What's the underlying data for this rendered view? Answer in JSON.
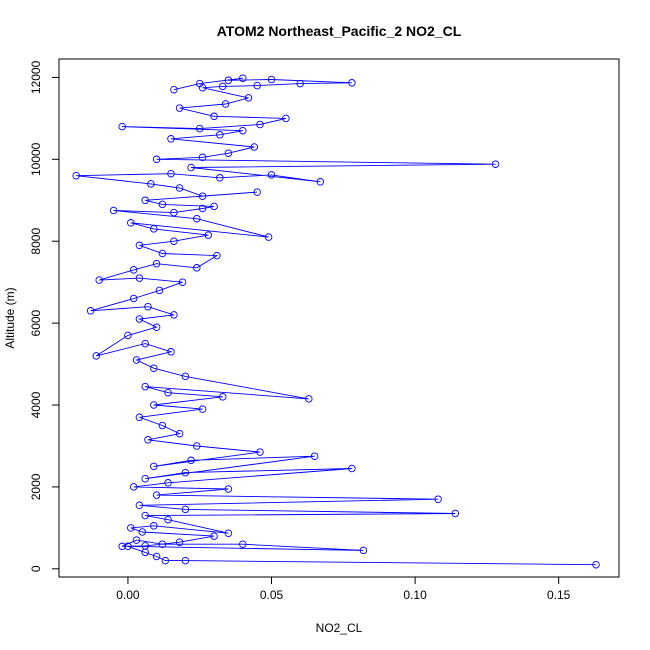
{
  "chart_data": {
    "type": "scatter",
    "mode": "lines+points",
    "title": "ATOM2 Northeast_Pacific_2 NO2_CL",
    "xlabel": "NO2_CL",
    "ylabel": "Altitude (m)",
    "xlim": [
      -0.024,
      0.171
    ],
    "ylim": [
      -200,
      12450
    ],
    "x_ticks": [
      0.0,
      0.05,
      0.1,
      0.15
    ],
    "x_tick_labels": [
      "0.00",
      "0.05",
      "0.10",
      "0.15"
    ],
    "y_ticks": [
      0,
      2000,
      4000,
      6000,
      8000,
      10000,
      12000
    ],
    "y_tick_labels": [
      "0",
      "2000",
      "4000",
      "6000",
      "8000",
      "10000",
      "12000"
    ],
    "grid": false,
    "legend": "none",
    "color": "#0000ff",
    "series": [
      {
        "points": [
          [
            0.163,
            100
          ],
          [
            0.02,
            200
          ],
          [
            0.013,
            200
          ],
          [
            0.01,
            300
          ],
          [
            0.006,
            400
          ],
          [
            0.0,
            550
          ],
          [
            0.082,
            450
          ],
          [
            0.04,
            600
          ],
          [
            0.012,
            600
          ],
          [
            0.003,
            700
          ],
          [
            -0.002,
            550
          ],
          [
            0.006,
            560
          ],
          [
            0.018,
            650
          ],
          [
            0.03,
            800
          ],
          [
            0.005,
            900
          ],
          [
            0.001,
            1000
          ],
          [
            0.009,
            1050
          ],
          [
            0.035,
            870
          ],
          [
            0.014,
            1200
          ],
          [
            0.006,
            1300
          ],
          [
            0.114,
            1350
          ],
          [
            0.02,
            1450
          ],
          [
            0.004,
            1550
          ],
          [
            0.108,
            1700
          ],
          [
            0.01,
            1800
          ],
          [
            0.035,
            1950
          ],
          [
            0.002,
            2000
          ],
          [
            0.014,
            2100
          ],
          [
            0.078,
            2450
          ],
          [
            0.02,
            2350
          ],
          [
            0.006,
            2200
          ],
          [
            0.065,
            2750
          ],
          [
            0.022,
            2650
          ],
          [
            0.009,
            2500
          ],
          [
            0.046,
            2850
          ],
          [
            0.024,
            3000
          ],
          [
            0.007,
            3150
          ],
          [
            0.018,
            3300
          ],
          [
            0.012,
            3500
          ],
          [
            0.004,
            3700
          ],
          [
            0.026,
            3900
          ],
          [
            0.009,
            4000
          ],
          [
            0.033,
            4200
          ],
          [
            0.014,
            4300
          ],
          [
            0.006,
            4450
          ],
          [
            0.063,
            4150
          ],
          [
            0.02,
            4700
          ],
          [
            0.009,
            4900
          ],
          [
            0.003,
            5100
          ],
          [
            0.015,
            5300
          ],
          [
            0.006,
            5500
          ],
          [
            -0.011,
            5200
          ],
          [
            0.0,
            5700
          ],
          [
            0.01,
            5900
          ],
          [
            0.004,
            6100
          ],
          [
            0.016,
            6200
          ],
          [
            0.007,
            6400
          ],
          [
            -0.013,
            6300
          ],
          [
            0.002,
            6600
          ],
          [
            0.011,
            6800
          ],
          [
            0.019,
            7000
          ],
          [
            0.004,
            7100
          ],
          [
            -0.01,
            7050
          ],
          [
            0.002,
            7300
          ],
          [
            0.01,
            7450
          ],
          [
            0.024,
            7350
          ],
          [
            0.031,
            7650
          ],
          [
            0.012,
            7700
          ],
          [
            0.004,
            7900
          ],
          [
            0.016,
            8000
          ],
          [
            0.028,
            8150
          ],
          [
            0.009,
            8300
          ],
          [
            0.001,
            8450
          ],
          [
            0.049,
            8100
          ],
          [
            0.024,
            8550
          ],
          [
            -0.005,
            8750
          ],
          [
            0.016,
            8700
          ],
          [
            0.026,
            8800
          ],
          [
            0.03,
            8850
          ],
          [
            0.012,
            8900
          ],
          [
            0.006,
            9000
          ],
          [
            0.045,
            9200
          ],
          [
            0.026,
            9100
          ],
          [
            0.018,
            9300
          ],
          [
            0.008,
            9400
          ],
          [
            -0.018,
            9600
          ],
          [
            0.015,
            9650
          ],
          [
            0.032,
            9550
          ],
          [
            0.05,
            9620
          ],
          [
            0.067,
            9450
          ],
          [
            0.022,
            9800
          ],
          [
            0.128,
            9880
          ],
          [
            0.01,
            10000
          ],
          [
            0.026,
            10050
          ],
          [
            0.035,
            10150
          ],
          [
            0.044,
            10300
          ],
          [
            0.015,
            10500
          ],
          [
            0.032,
            10600
          ],
          [
            0.04,
            10700
          ],
          [
            -0.002,
            10800
          ],
          [
            0.025,
            10750
          ],
          [
            0.046,
            10850
          ],
          [
            0.055,
            11000
          ],
          [
            0.03,
            11050
          ],
          [
            0.018,
            11250
          ],
          [
            0.034,
            11350
          ],
          [
            0.042,
            11500
          ],
          [
            0.026,
            11750
          ],
          [
            0.033,
            11780
          ],
          [
            0.045,
            11800
          ],
          [
            0.06,
            11850
          ],
          [
            0.078,
            11870
          ],
          [
            0.05,
            11950
          ],
          [
            0.035,
            11930
          ],
          [
            0.04,
            11980
          ],
          [
            0.025,
            11850
          ],
          [
            0.016,
            11700
          ]
        ]
      }
    ]
  }
}
